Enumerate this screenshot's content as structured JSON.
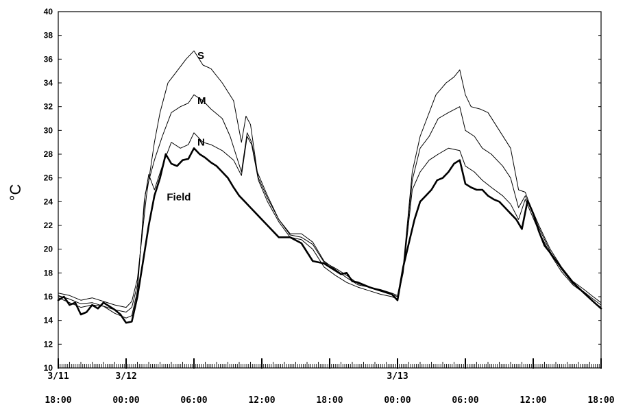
{
  "chart_data": {
    "type": "line",
    "title": "",
    "xlabel": "",
    "ylabel": "°C",
    "ylim": [
      10,
      40
    ],
    "y_ticks": [
      10,
      12,
      14,
      16,
      18,
      20,
      22,
      24,
      26,
      28,
      30,
      32,
      34,
      36,
      38,
      40
    ],
    "xlim": [
      0,
      48
    ],
    "x_unit": "hours from 3/11 18:00",
    "x_ticks": [
      {
        "x": 0,
        "date": "3/11",
        "time": "18:00"
      },
      {
        "x": 6,
        "date": "3/12",
        "time": "00:00"
      },
      {
        "x": 12,
        "date": "",
        "time": "06:00"
      },
      {
        "x": 18,
        "date": "",
        "time": "12:00"
      },
      {
        "x": 24,
        "date": "",
        "time": "18:00"
      },
      {
        "x": 30,
        "date": "3/13",
        "time": "00:00"
      },
      {
        "x": 36,
        "date": "",
        "time": "06:00"
      },
      {
        "x": 42,
        "date": "",
        "time": "12:00"
      },
      {
        "x": 48,
        "date": "",
        "time": "18:00"
      }
    ],
    "grid": false,
    "series": [
      {
        "name": "S",
        "color": "#000000",
        "width": 1,
        "points": [
          [
            0,
            16.3
          ],
          [
            1,
            16.1
          ],
          [
            2,
            15.7
          ],
          [
            3,
            15.9
          ],
          [
            4,
            15.6
          ],
          [
            5,
            15.3
          ],
          [
            6,
            15.1
          ],
          [
            6.5,
            15.6
          ],
          [
            7,
            17.5
          ],
          [
            7.8,
            24.5
          ],
          [
            8.5,
            29
          ],
          [
            9,
            31.5
          ],
          [
            9.7,
            34
          ],
          [
            10.5,
            35
          ],
          [
            11.3,
            36
          ],
          [
            12,
            36.7
          ],
          [
            12.8,
            35.5
          ],
          [
            13.5,
            35.2
          ],
          [
            14.5,
            34
          ],
          [
            15.5,
            32.5
          ],
          [
            16.2,
            29
          ],
          [
            16.6,
            31.2
          ],
          [
            17,
            30.5
          ],
          [
            17.6,
            26.5
          ],
          [
            18.5,
            24.5
          ],
          [
            19.5,
            22.5
          ],
          [
            20.5,
            21.3
          ],
          [
            21.5,
            21.3
          ],
          [
            22.5,
            20.6
          ],
          [
            23.5,
            19
          ],
          [
            24.5,
            18.3
          ],
          [
            25.5,
            17.6
          ],
          [
            26.5,
            17
          ],
          [
            27.5,
            16.8
          ],
          [
            28.5,
            16.6
          ],
          [
            29.5,
            16.3
          ],
          [
            30,
            16.1
          ],
          [
            30.5,
            18.5
          ],
          [
            31.3,
            26.5
          ],
          [
            32,
            29.5
          ],
          [
            32.6,
            31
          ],
          [
            33.4,
            33
          ],
          [
            34.3,
            34
          ],
          [
            35,
            34.5
          ],
          [
            35.5,
            35.1
          ],
          [
            36,
            33
          ],
          [
            36.5,
            32
          ],
          [
            37.3,
            31.8
          ],
          [
            38,
            31.5
          ],
          [
            39,
            30
          ],
          [
            40,
            28.5
          ],
          [
            40.7,
            25
          ],
          [
            41.3,
            24.8
          ],
          [
            41.6,
            24
          ],
          [
            42.5,
            22
          ],
          [
            43.5,
            20
          ],
          [
            44.5,
            18.5
          ],
          [
            45.5,
            17.3
          ],
          [
            46.5,
            16.6
          ],
          [
            47.3,
            16
          ],
          [
            48,
            15.5
          ]
        ]
      },
      {
        "name": "M",
        "color": "#000000",
        "width": 1,
        "points": [
          [
            0,
            16.1
          ],
          [
            1,
            15.8
          ],
          [
            2,
            15.4
          ],
          [
            3,
            15.5
          ],
          [
            4,
            15.2
          ],
          [
            5,
            14.9
          ],
          [
            6,
            14.7
          ],
          [
            6.5,
            15.1
          ],
          [
            7,
            17
          ],
          [
            7.7,
            24.7
          ],
          [
            8.5,
            27.5
          ],
          [
            9.2,
            29.5
          ],
          [
            10,
            31.5
          ],
          [
            10.8,
            32
          ],
          [
            11.5,
            32.3
          ],
          [
            12,
            33
          ],
          [
            12.8,
            32.5
          ],
          [
            13.5,
            31.8
          ],
          [
            14.5,
            31
          ],
          [
            15.2,
            29.5
          ],
          [
            16.2,
            26.5
          ],
          [
            16.7,
            29.8
          ],
          [
            17.1,
            29
          ],
          [
            17.7,
            26
          ],
          [
            18.5,
            24.3
          ],
          [
            19.5,
            22.5
          ],
          [
            20.5,
            21.2
          ],
          [
            21.5,
            21
          ],
          [
            22.5,
            20.4
          ],
          [
            23.5,
            18.9
          ],
          [
            24.5,
            18.4
          ],
          [
            25.5,
            17.8
          ],
          [
            26.5,
            17.1
          ],
          [
            27.5,
            16.8
          ],
          [
            28.5,
            16.5
          ],
          [
            29.5,
            16.2
          ],
          [
            30,
            16
          ],
          [
            30.5,
            18.2
          ],
          [
            31.3,
            25.8
          ],
          [
            32,
            28.5
          ],
          [
            32.8,
            29.5
          ],
          [
            33.6,
            31
          ],
          [
            34.5,
            31.5
          ],
          [
            35.5,
            32
          ],
          [
            36,
            30
          ],
          [
            36.8,
            29.5
          ],
          [
            37.5,
            28.5
          ],
          [
            38.3,
            28
          ],
          [
            39.3,
            27
          ],
          [
            40,
            26
          ],
          [
            40.7,
            23.5
          ],
          [
            41.3,
            24.5
          ],
          [
            41.6,
            23.8
          ],
          [
            42.5,
            21.8
          ],
          [
            43.5,
            19.8
          ],
          [
            44.5,
            18.3
          ],
          [
            45.5,
            17.1
          ],
          [
            46.5,
            16.4
          ],
          [
            47.3,
            15.8
          ],
          [
            48,
            15.3
          ]
        ]
      },
      {
        "name": "N",
        "color": "#000000",
        "width": 1,
        "points": [
          [
            0,
            15.9
          ],
          [
            1,
            15.5
          ],
          [
            2,
            15.1
          ],
          [
            3,
            15.3
          ],
          [
            4,
            15.2
          ],
          [
            5,
            14.6
          ],
          [
            6,
            14.2
          ],
          [
            6.5,
            14.4
          ],
          [
            7,
            16.5
          ],
          [
            7.6,
            24
          ],
          [
            8,
            26.3
          ],
          [
            8.5,
            25
          ],
          [
            9.2,
            27
          ],
          [
            10,
            29
          ],
          [
            10.8,
            28.5
          ],
          [
            11.5,
            28.8
          ],
          [
            12,
            29.8
          ],
          [
            12.8,
            29
          ],
          [
            13.5,
            28.8
          ],
          [
            14.5,
            28.3
          ],
          [
            15.5,
            27.5
          ],
          [
            16.2,
            26.2
          ],
          [
            16.7,
            29.5
          ],
          [
            17.1,
            28.8
          ],
          [
            17.7,
            25.8
          ],
          [
            18.5,
            24
          ],
          [
            19.5,
            22.3
          ],
          [
            20.5,
            21
          ],
          [
            21.5,
            20.8
          ],
          [
            22.5,
            20
          ],
          [
            23.5,
            18.5
          ],
          [
            24.5,
            17.8
          ],
          [
            25.5,
            17.2
          ],
          [
            26.5,
            16.8
          ],
          [
            27.5,
            16.5
          ],
          [
            28.5,
            16.2
          ],
          [
            29.5,
            16
          ],
          [
            30,
            15.8
          ],
          [
            30.5,
            18
          ],
          [
            31.3,
            25
          ],
          [
            32,
            26.5
          ],
          [
            32.8,
            27.5
          ],
          [
            33.6,
            28
          ],
          [
            34.5,
            28.5
          ],
          [
            35.5,
            28.3
          ],
          [
            36,
            27
          ],
          [
            36.8,
            26.5
          ],
          [
            37.5,
            25.8
          ],
          [
            38.3,
            25.2
          ],
          [
            39.3,
            24.5
          ],
          [
            40,
            23.8
          ],
          [
            40.7,
            22.5
          ],
          [
            41.3,
            24.2
          ],
          [
            41.6,
            23.5
          ],
          [
            42.5,
            21.5
          ],
          [
            43.5,
            19.6
          ],
          [
            44.5,
            18.1
          ],
          [
            45.5,
            17
          ],
          [
            46.5,
            16.3
          ],
          [
            47.3,
            15.6
          ],
          [
            48,
            15.1
          ]
        ]
      },
      {
        "name": "Field",
        "color": "#000000",
        "width": 2.6,
        "points": [
          [
            0,
            15.7
          ],
          [
            0.5,
            16
          ],
          [
            1,
            15.3
          ],
          [
            1.5,
            15.5
          ],
          [
            2,
            14.5
          ],
          [
            2.5,
            14.7
          ],
          [
            3,
            15.3
          ],
          [
            3.5,
            15
          ],
          [
            4,
            15.5
          ],
          [
            4.5,
            15.2
          ],
          [
            5,
            14.9
          ],
          [
            5.5,
            14.5
          ],
          [
            6,
            13.8
          ],
          [
            6.5,
            13.9
          ],
          [
            7,
            16
          ],
          [
            7.5,
            19
          ],
          [
            8,
            22
          ],
          [
            8.5,
            24.5
          ],
          [
            9,
            26
          ],
          [
            9.5,
            28
          ],
          [
            10,
            27.2
          ],
          [
            10.5,
            27
          ],
          [
            11,
            27.5
          ],
          [
            11.5,
            27.6
          ],
          [
            12,
            28.5
          ],
          [
            12.5,
            28
          ],
          [
            13,
            27.7
          ],
          [
            13.5,
            27.3
          ],
          [
            14,
            27
          ],
          [
            14.5,
            26.5
          ],
          [
            15,
            26
          ],
          [
            15.5,
            25.2
          ],
          [
            16,
            24.5
          ],
          [
            16.5,
            24
          ],
          [
            17,
            23.5
          ],
          [
            17.5,
            23
          ],
          [
            18,
            22.5
          ],
          [
            18.5,
            22
          ],
          [
            19.5,
            21
          ],
          [
            20.5,
            21
          ],
          [
            21.5,
            20.5
          ],
          [
            22.5,
            19
          ],
          [
            23.5,
            18.8
          ],
          [
            24.5,
            18.2
          ],
          [
            25,
            17.9
          ],
          [
            25.5,
            18
          ],
          [
            26,
            17.3
          ],
          [
            26.5,
            17.2
          ],
          [
            27.5,
            16.8
          ],
          [
            28.5,
            16.5
          ],
          [
            29.5,
            16.2
          ],
          [
            30,
            15.7
          ],
          [
            30.5,
            18.5
          ],
          [
            31,
            20.5
          ],
          [
            31.5,
            22.5
          ],
          [
            32,
            24
          ],
          [
            32.5,
            24.5
          ],
          [
            33,
            25
          ],
          [
            33.5,
            25.8
          ],
          [
            34,
            26
          ],
          [
            34.5,
            26.5
          ],
          [
            35,
            27.2
          ],
          [
            35.5,
            27.5
          ],
          [
            36,
            25.5
          ],
          [
            36.5,
            25.2
          ],
          [
            37,
            25
          ],
          [
            37.5,
            25
          ],
          [
            38,
            24.5
          ],
          [
            38.5,
            24.2
          ],
          [
            39,
            24
          ],
          [
            39.5,
            23.5
          ],
          [
            40,
            23
          ],
          [
            40.5,
            22.5
          ],
          [
            41,
            21.7
          ],
          [
            41.5,
            24.1
          ],
          [
            42,
            23
          ],
          [
            42.5,
            21.5
          ],
          [
            43,
            20.3
          ],
          [
            43.5,
            19.7
          ],
          [
            44.5,
            18.4
          ],
          [
            45.5,
            17.2
          ],
          [
            46.5,
            16.3
          ],
          [
            47.3,
            15.6
          ],
          [
            48,
            15
          ]
        ]
      }
    ],
    "annotations": [
      {
        "text": "S",
        "series": "S",
        "x": 12.3,
        "y": 36.3
      },
      {
        "text": "M",
        "series": "M",
        "x": 12.3,
        "y": 32.5
      },
      {
        "text": "N",
        "series": "N",
        "x": 12.3,
        "y": 29.0
      },
      {
        "text": "Field",
        "series": "Field",
        "x": 9.6,
        "y": 24.4
      }
    ]
  }
}
